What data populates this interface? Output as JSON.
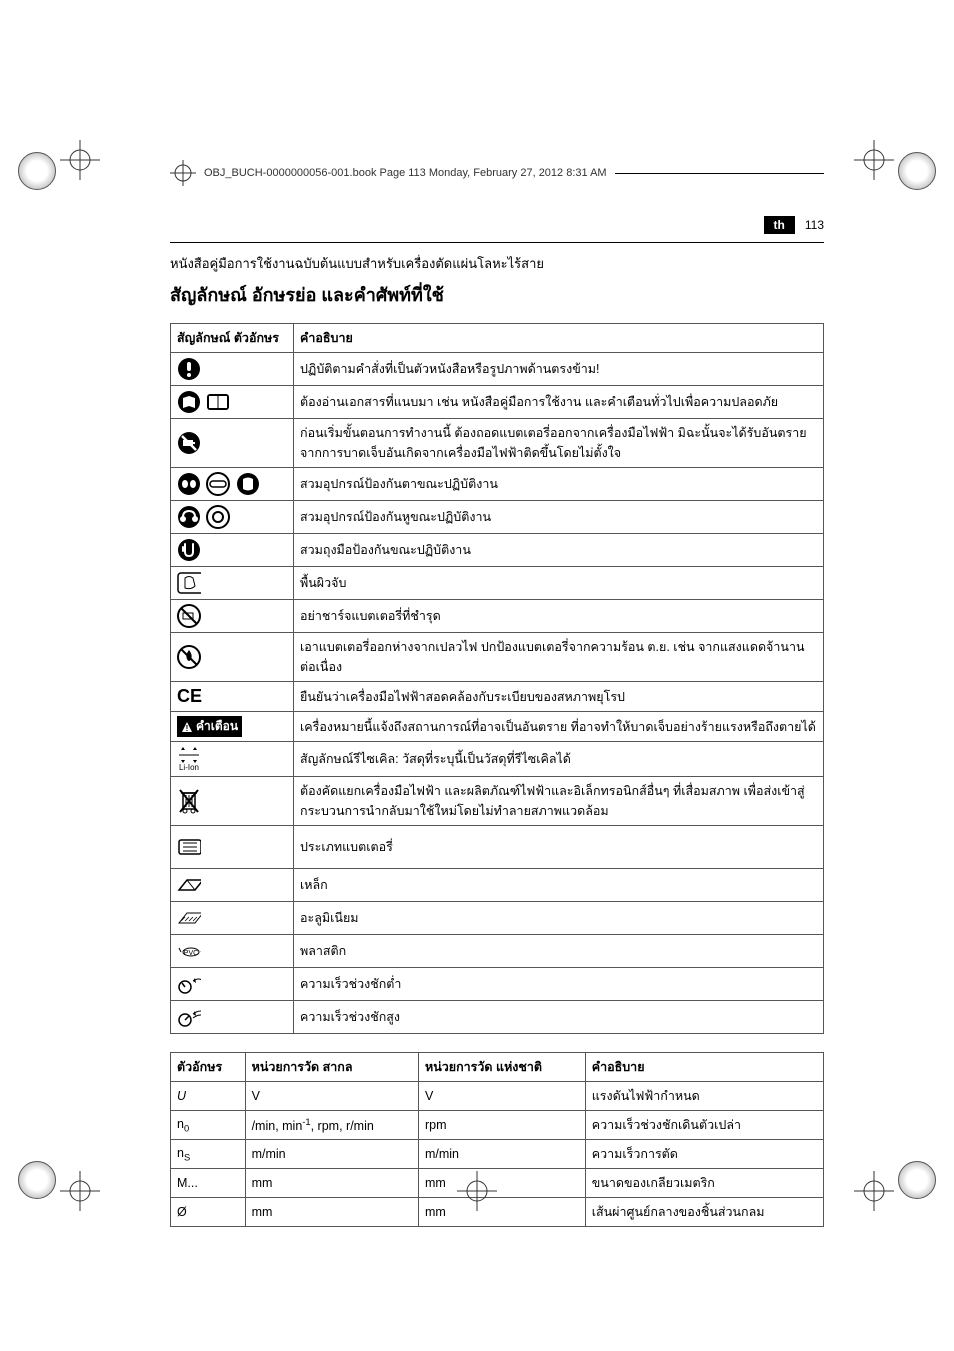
{
  "header": {
    "book_ref": "OBJ_BUCH-0000000056-001.book  Page 113  Monday, February 27, 2012  8:31 AM"
  },
  "page": {
    "lang_badge": "th",
    "number": "113",
    "subtitle": "หนังสือคู่มือการใช้งานฉบับต้นแบบสำหรับเครื่องตัดแผ่นโลหะไร้สาย",
    "title": "สัญลักษณ์ อักษรย่อ และคำศัพท์ที่ใช้"
  },
  "symbols_table": {
    "col1": "สัญลักษณ์ ตัวอักษร",
    "col2": "คำอธิบาย",
    "rows": [
      {
        "desc": "ปฏิบัติตามคำสั่งที่เป็นตัวหนังสือหรือรูปภาพด้านตรงข้าม!"
      },
      {
        "desc": "ต้องอ่านเอกสารที่แนบมา เช่น หนังสือคู่มือการใช้งาน และคำเตือนทั่วไปเพื่อความปลอดภัย"
      },
      {
        "desc": "ก่อนเริ่มขั้นตอนการทำงานนี้ ต้องถอดแบตเตอรี่ออกจากเครื่องมือไฟฟ้า มิฉะนั้นจะได้รับอันตรายจากการบาดเจ็บอันเกิดจากเครื่องมือไฟฟ้าติดขึ้นโดยไม่ตั้งใจ"
      },
      {
        "desc": "สวมอุปกรณ์ป้องกันตาขณะปฏิบัติงาน"
      },
      {
        "desc": "สวมอุปกรณ์ป้องกันหูขณะปฏิบัติงาน"
      },
      {
        "desc": "สวมถุงมือป้องกันขณะปฏิบัติงาน"
      },
      {
        "desc": "พื้นผิวจับ"
      },
      {
        "desc": "อย่าชาร์จแบตเตอรี่ที่ชำรุด"
      },
      {
        "desc": "เอาแบตเตอรี่ออกห่างจากเปลวไฟ ปกป้องแบตเตอรี่จากความร้อน ต.ย. เช่น จากแสงแดดจ้านานต่อเนื่อง"
      },
      {
        "desc": "ยืนยันว่าเครื่องมือไฟฟ้าสอดคล้องกับระเบียบของสหภาพยุโรป"
      },
      {
        "warn_label": "คำเตือน",
        "desc": "เครื่องหมายนี้แจ้งถึงสถานการณ์ที่อาจเป็นอันตราย ที่อาจทำให้บาดเจ็บอย่างร้ายแรงหรือถึงตายได้"
      },
      {
        "liion_label": "Li-Ion",
        "desc": "สัญลักษณ์รีไซเคิล: วัสดุที่ระบุนี้เป็นวัสดุที่รีไซเคิลได้"
      },
      {
        "desc": "ต้องคัดแยกเครื่องมือไฟฟ้า และผลิตภัณฑ์ไฟฟ้าและอิเล็กทรอนิกส์อื่นๆ ที่เสื่อมสภาพ เพื่อส่งเข้าสู่กระบวนการนำกลับมาใช้ใหม่โดยไม่ทำลายสภาพแวดล้อม"
      },
      {
        "desc": "ประเภทแบตเตอรี่"
      },
      {
        "desc": "เหล็ก"
      },
      {
        "desc": "อะลูมิเนียม"
      },
      {
        "desc": "พลาสติก"
      },
      {
        "desc": "ความเร็วช่วงชักต่ำ"
      },
      {
        "desc": "ความเร็วช่วงชักสูง"
      }
    ]
  },
  "units_table": {
    "headers": [
      "ตัวอักษร",
      "หน่วยการวัด สากล",
      "หน่วยการวัด แห่งชาติ",
      "คำอธิบาย"
    ],
    "rows": [
      {
        "sym": "U",
        "intl": "V",
        "nat": "V",
        "desc": "แรงดันไฟฟ้ากำหนด"
      },
      {
        "sym_html": "n<sub>0</sub>",
        "intl_html": "/min, min<sup>-1</sup>, rpm, r/min",
        "nat": "rpm",
        "desc": "ความเร็วช่วงชักเดินตัวเปล่า"
      },
      {
        "sym_html": "n<sub>S</sub>",
        "intl": "m/min",
        "nat": "m/min",
        "desc": "ความเร็วการตัด"
      },
      {
        "sym": "M...",
        "intl": "mm",
        "nat": "mm",
        "desc": "ขนาดของเกลียวเมตริก"
      },
      {
        "sym": "Ø",
        "intl": "mm",
        "nat": "mm",
        "desc": "เส้นผ่าศูนย์กลางของชิ้นส่วนกลม"
      }
    ]
  }
}
